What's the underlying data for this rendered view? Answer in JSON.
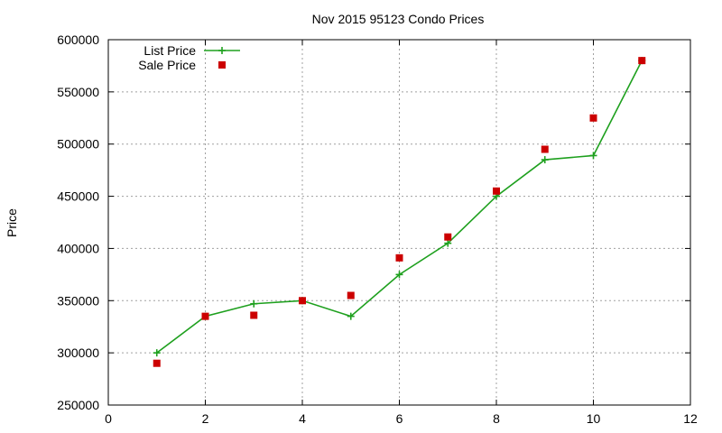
{
  "chart_data": {
    "type": "line",
    "title": "Nov 2015 95123 Condo Prices",
    "xlabel": "",
    "ylabel": "Price",
    "xlim": [
      0,
      12
    ],
    "ylim": [
      250000,
      600000
    ],
    "x_ticks": [
      0,
      2,
      4,
      6,
      8,
      10,
      12
    ],
    "y_ticks": [
      250000,
      300000,
      350000,
      400000,
      450000,
      500000,
      550000,
      600000
    ],
    "x_tick_labels": [
      "0",
      "2",
      "4",
      "6",
      "8",
      "10",
      "12"
    ],
    "y_tick_labels": [
      "250000",
      "300000",
      "350000",
      "400000",
      "450000",
      "500000",
      "550000",
      "600000"
    ],
    "grid": true,
    "legend_position": "top-left",
    "series": [
      {
        "name": "List Price",
        "style": "linespoints",
        "marker": "plus",
        "color": "#1ea01e",
        "x": [
          1,
          2,
          3,
          4,
          5,
          6,
          7,
          8,
          9,
          10,
          11
        ],
        "y": [
          300000,
          335000,
          347000,
          350000,
          335000,
          375000,
          405000,
          450000,
          485000,
          489000,
          580000
        ]
      },
      {
        "name": "Sale Price",
        "style": "points",
        "marker": "square",
        "color": "#cc0000",
        "x": [
          1,
          2,
          3,
          4,
          5,
          6,
          7,
          8,
          9,
          10,
          11
        ],
        "y": [
          290000,
          335000,
          336000,
          350000,
          355000,
          391000,
          411000,
          455000,
          495000,
          525000,
          580000
        ]
      }
    ]
  }
}
